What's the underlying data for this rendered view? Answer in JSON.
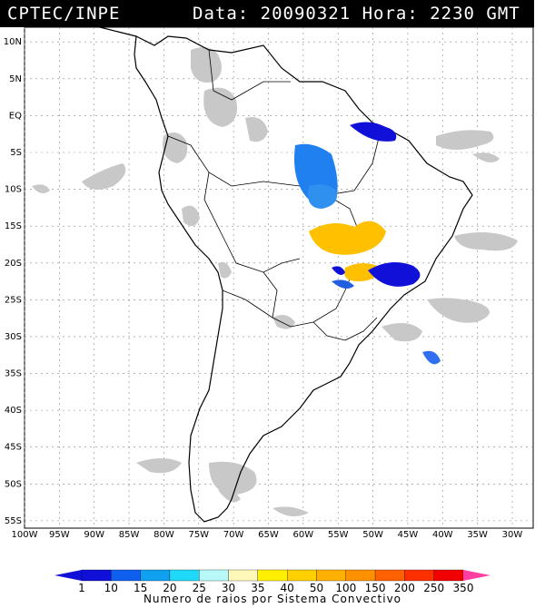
{
  "header": {
    "source": "CPTEC/INPE",
    "datetime": "Data: 20090321 Hora: 2230 GMT"
  },
  "map": {
    "lat_labels": [
      "10N",
      "5N",
      "EQ",
      "5S",
      "10S",
      "15S",
      "20S",
      "25S",
      "30S",
      "35S",
      "40S",
      "45S",
      "50S",
      "55S"
    ],
    "lon_labels": [
      "100W",
      "95W",
      "90W",
      "85W",
      "80W",
      "75W",
      "70W",
      "65W",
      "60W",
      "55W",
      "50W",
      "45W",
      "40W",
      "35W",
      "30W"
    ],
    "lon_range": [
      -100,
      -27
    ],
    "lat_range": [
      -56,
      12
    ],
    "cloud_color": "#c8c8c8"
  },
  "colorbar": {
    "ticks": [
      "1",
      "10",
      "15",
      "20",
      "25",
      "30",
      "35",
      "40",
      "50",
      "100",
      "150",
      "200",
      "250",
      "350"
    ],
    "colors": [
      "#1010d8",
      "#1060f0",
      "#10a0f0",
      "#20d8f8",
      "#b8f8f8",
      "#fff8b8",
      "#fff000",
      "#ffd000",
      "#ffb000",
      "#ff9000",
      "#ff6000",
      "#ff3000",
      "#f00000"
    ],
    "title": "Numero de raios por Sistema Convectivo"
  }
}
